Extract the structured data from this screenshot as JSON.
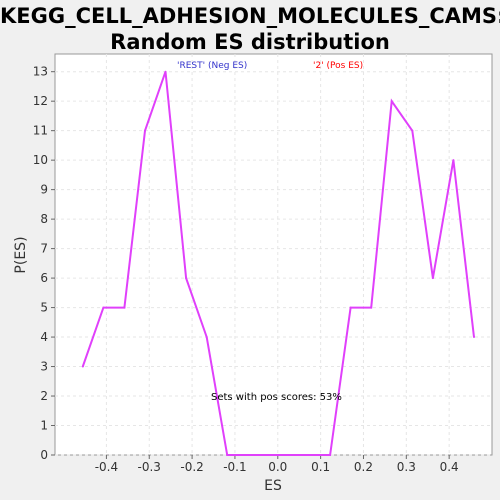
{
  "chart_data": {
    "type": "line",
    "title_line1": "KEGG_CELL_ADHESION_MOLECULES_CAMS:",
    "title_line2": "Random ES distribution",
    "xlabel": "ES",
    "ylabel": "P(ES)",
    "xlim": [
      -0.52,
      0.5
    ],
    "ylim": [
      0,
      13.6
    ],
    "x_ticks": [
      "-0.4",
      "-0.3",
      "-0.2",
      "-0.1",
      "0.0",
      "0.1",
      "0.2",
      "0.3",
      "0.4"
    ],
    "x_tick_values": [
      -0.4,
      -0.3,
      -0.2,
      -0.1,
      0.0,
      0.1,
      0.2,
      0.3,
      0.4
    ],
    "y_ticks": [
      "0",
      "1",
      "2",
      "3",
      "4",
      "5",
      "6",
      "7",
      "8",
      "9",
      "10",
      "11",
      "12",
      "13"
    ],
    "y_tick_values": [
      0,
      1,
      2,
      3,
      4,
      5,
      6,
      7,
      8,
      9,
      10,
      11,
      12,
      13
    ],
    "grid": true,
    "legend": [
      {
        "label": "'REST' (Neg ES)",
        "color": "#3333cc"
      },
      {
        "label": "'2' (Pos ES)",
        "color": "#ff0000"
      }
    ],
    "annotation": "Sets with pos scores: 53%",
    "series": [
      {
        "color": "#e040fb",
        "x": [
          -0.455,
          -0.407,
          -0.358,
          -0.31,
          -0.262,
          -0.214,
          -0.166,
          -0.118,
          -0.07,
          -0.022,
          0.026,
          0.074,
          0.122,
          0.17,
          0.218,
          0.266,
          0.314,
          0.362,
          0.41,
          0.458
        ],
        "y": [
          3,
          5,
          5,
          11,
          13,
          6,
          4,
          0,
          0,
          0,
          0,
          0,
          0,
          5,
          5,
          12,
          11,
          6,
          10,
          4
        ]
      }
    ]
  }
}
